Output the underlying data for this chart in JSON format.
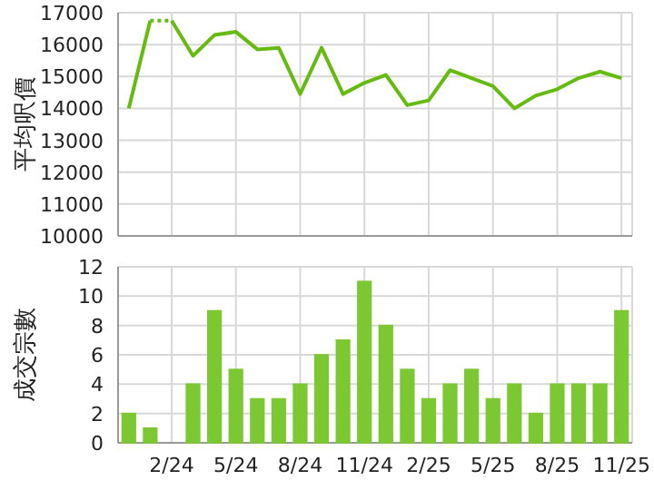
{
  "chart_data": [
    {
      "type": "line",
      "ylabel": "平均呎價",
      "categories": [
        null,
        null,
        null,
        null,
        null,
        null,
        null,
        null,
        null,
        null,
        null,
        null,
        null,
        null,
        null,
        null,
        null,
        null,
        null,
        null,
        null,
        null,
        null,
        null
      ],
      "tick_labels": "y",
      "grid": true,
      "ylim": [
        10000,
        17000
      ],
      "yticks": [
        10000,
        11000,
        12000,
        13000,
        14000,
        15000,
        16000,
        17000
      ],
      "series": [
        {
          "color": "#66bb11",
          "line_style": "solid",
          "values": [
            14000,
            16750,
            null,
            null,
            null,
            null,
            null,
            null,
            null,
            null,
            null,
            null,
            null,
            null,
            null,
            null,
            null,
            null,
            null,
            null,
            null,
            null,
            null,
            null
          ]
        },
        {
          "color": "#66bb11",
          "line_style": "dotted",
          "values": [
            null,
            16750,
            16750,
            null,
            null,
            null,
            null,
            null,
            null,
            null,
            null,
            null,
            null,
            null,
            null,
            null,
            null,
            null,
            null,
            null,
            null,
            null,
            null,
            null
          ]
        },
        {
          "color": "#66bb11",
          "line_style": "solid",
          "values": [
            null,
            null,
            16750,
            15650,
            16300,
            16400,
            15850,
            15900,
            14450,
            15900,
            14450,
            14800,
            15050,
            14100,
            14250,
            15200,
            14950,
            14700,
            14000,
            14400,
            14600,
            14950,
            15150,
            14950
          ]
        }
      ]
    },
    {
      "type": "bar",
      "ylabel": "成交宗數",
      "categories": [
        null,
        null,
        "2/24",
        null,
        null,
        "5/24",
        null,
        null,
        "8/24",
        null,
        null,
        "11/24",
        null,
        null,
        "2/25",
        null,
        null,
        "5/25",
        null,
        null,
        "8/25",
        null,
        null,
        "11/25"
      ],
      "grid": true,
      "ylim": [
        0,
        12
      ],
      "yticks": [
        0,
        2,
        4,
        6,
        8,
        10,
        12
      ],
      "color": "#7cc832",
      "values": [
        2,
        1,
        0,
        4,
        9,
        5,
        3,
        3,
        4,
        6,
        7,
        11,
        8,
        5,
        3,
        4,
        5,
        3,
        4,
        2,
        4,
        4,
        4,
        9
      ]
    }
  ]
}
